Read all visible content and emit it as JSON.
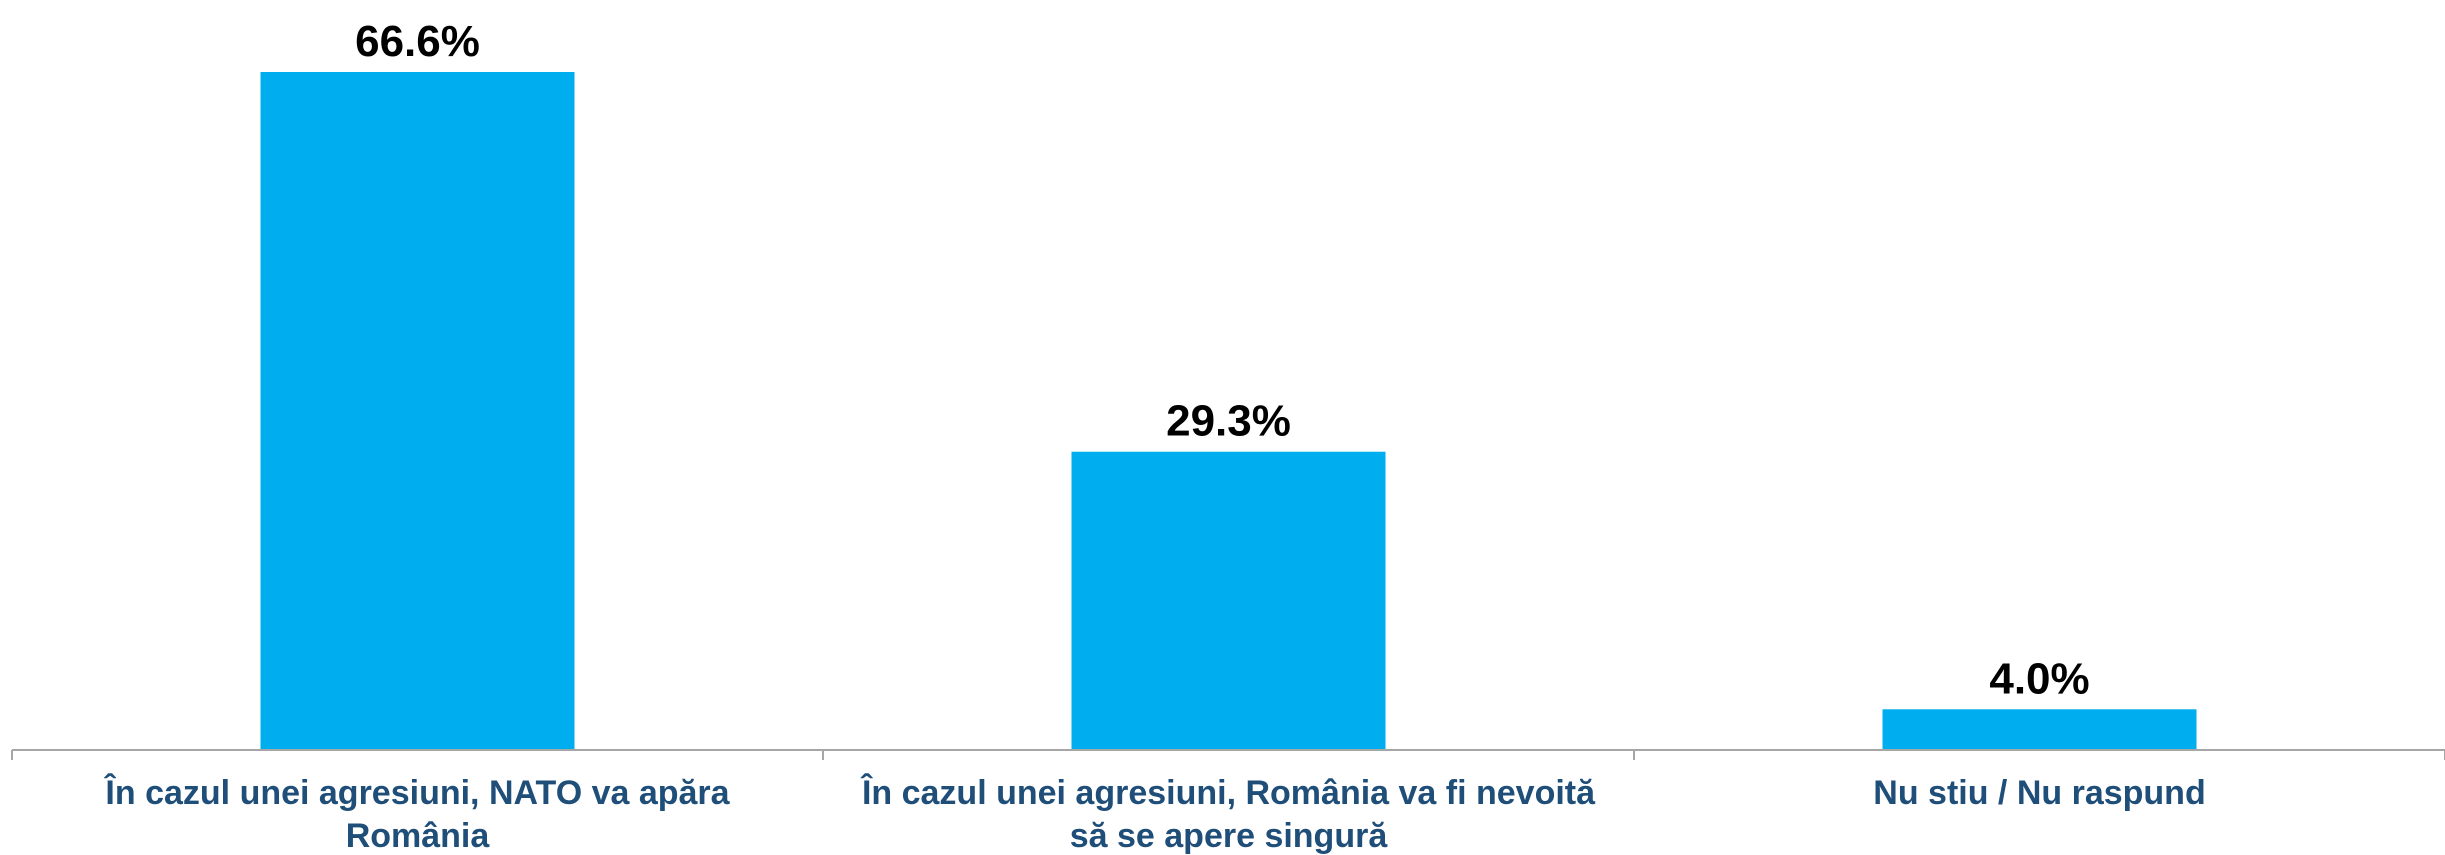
{
  "chart_data": {
    "type": "bar",
    "categories": [
      [
        "În cazul unei agresiuni, NATO va apăra",
        "România"
      ],
      [
        "În cazul unei agresiuni, România va fi nevoită",
        "să se apere singură"
      ],
      [
        "Nu stiu / Nu raspund"
      ]
    ],
    "values": [
      66.6,
      29.3,
      4.0
    ],
    "value_labels": [
      "66.6%",
      "29.3%",
      "4.0%"
    ],
    "ylim": [
      0,
      70
    ],
    "grid": false,
    "legend": "none",
    "bar_color": "#00AEEF",
    "axis_color": "#A6A6A6",
    "category_label_color": "#1F4E79",
    "value_label_color": "#000000"
  }
}
